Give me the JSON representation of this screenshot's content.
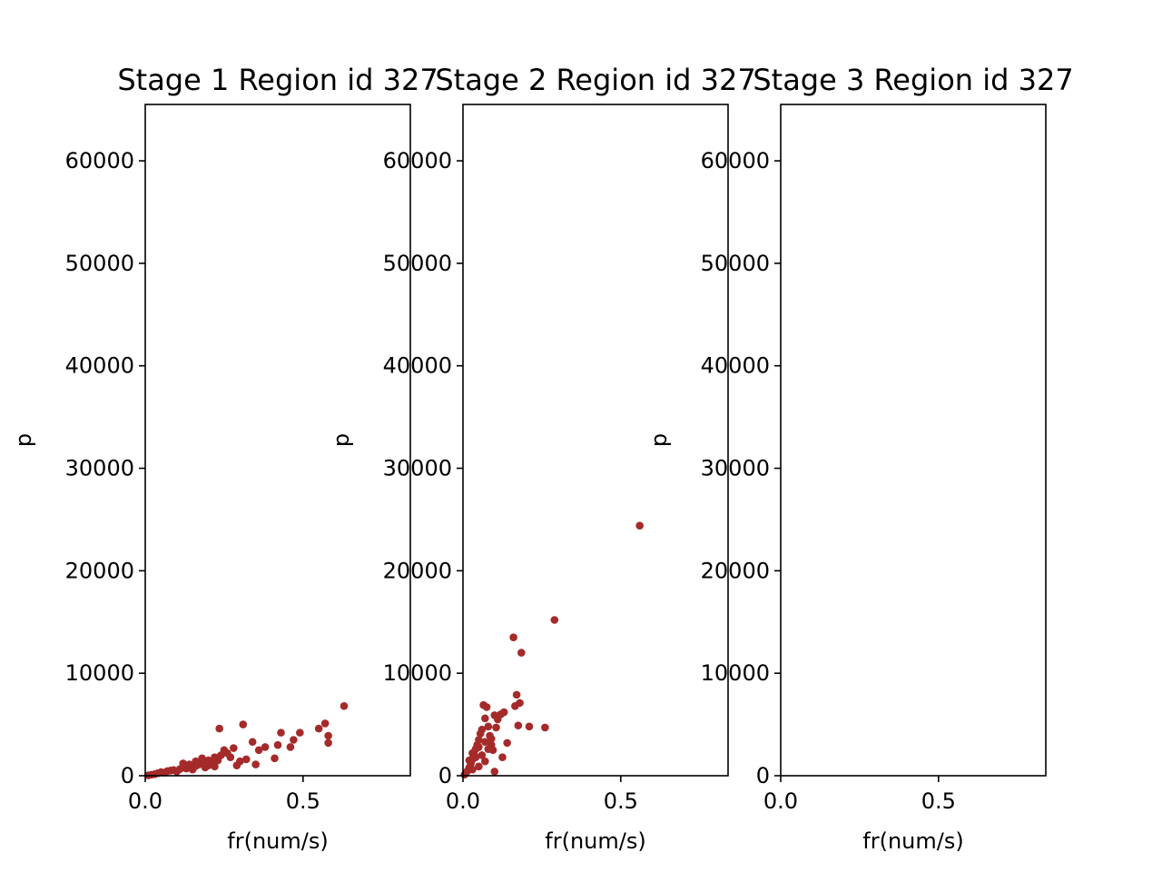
{
  "chart_data": [
    {
      "type": "scatter",
      "title": "Stage 1 Region id 327",
      "xlabel": "fr(num/s)",
      "ylabel": "p",
      "xlim": [
        0,
        0.84
      ],
      "ylim": [
        0,
        65500
      ],
      "xticks": [
        "0.0",
        "0.5"
      ],
      "yticks": [
        "0",
        "10000",
        "20000",
        "30000",
        "40000",
        "50000",
        "60000"
      ],
      "grid": false,
      "color": "#a52a2a",
      "points": [
        [
          0.01,
          40
        ],
        [
          0.02,
          100
        ],
        [
          0.03,
          150
        ],
        [
          0.04,
          250
        ],
        [
          0.05,
          350
        ],
        [
          0.06,
          300
        ],
        [
          0.07,
          450
        ],
        [
          0.08,
          500
        ],
        [
          0.09,
          550
        ],
        [
          0.1,
          400
        ],
        [
          0.11,
          650
        ],
        [
          0.12,
          800
        ],
        [
          0.13,
          700
        ],
        [
          0.14,
          900
        ],
        [
          0.15,
          600
        ],
        [
          0.16,
          950
        ],
        [
          0.17,
          1100
        ],
        [
          0.18,
          1200
        ],
        [
          0.19,
          800
        ],
        [
          0.2,
          1000
        ],
        [
          0.21,
          1300
        ],
        [
          0.22,
          900
        ],
        [
          0.23,
          1500
        ],
        [
          0.235,
          4600
        ],
        [
          0.25,
          2500
        ],
        [
          0.26,
          2200
        ],
        [
          0.27,
          1800
        ],
        [
          0.28,
          2700
        ],
        [
          0.29,
          1000
        ],
        [
          0.3,
          1400
        ],
        [
          0.31,
          5000
        ],
        [
          0.32,
          1600
        ],
        [
          0.34,
          3300
        ],
        [
          0.35,
          1100
        ],
        [
          0.36,
          2500
        ],
        [
          0.38,
          2800
        ],
        [
          0.41,
          1700
        ],
        [
          0.42,
          3000
        ],
        [
          0.43,
          4200
        ],
        [
          0.46,
          2800
        ],
        [
          0.47,
          3500
        ],
        [
          0.49,
          4200
        ],
        [
          0.55,
          4600
        ],
        [
          0.57,
          5100
        ],
        [
          0.58,
          3900
        ],
        [
          0.58,
          3200
        ],
        [
          0.63,
          6800
        ],
        [
          0.12,
          1200
        ],
        [
          0.14,
          1100
        ],
        [
          0.16,
          1400
        ],
        [
          0.18,
          1700
        ],
        [
          0.2,
          1500
        ],
        [
          0.22,
          1800
        ],
        [
          0.24,
          2000
        ]
      ]
    },
    {
      "type": "scatter",
      "title": "Stage 2 Region id 327",
      "xlabel": "fr(num/s)",
      "ylabel": "p",
      "xlim": [
        0,
        0.84
      ],
      "ylim": [
        0,
        65500
      ],
      "xticks": [
        "0.0",
        "0.5"
      ],
      "yticks": [
        "0",
        "10000",
        "20000",
        "30000",
        "40000",
        "50000",
        "60000"
      ],
      "grid": false,
      "color": "#a52a2a",
      "points": [
        [
          0.005,
          100
        ],
        [
          0.01,
          300
        ],
        [
          0.015,
          500
        ],
        [
          0.02,
          800
        ],
        [
          0.025,
          1200
        ],
        [
          0.03,
          1600
        ],
        [
          0.035,
          2100
        ],
        [
          0.04,
          2600
        ],
        [
          0.045,
          3000
        ],
        [
          0.05,
          3500
        ],
        [
          0.055,
          4100
        ],
        [
          0.06,
          4500
        ],
        [
          0.065,
          6900
        ],
        [
          0.07,
          5600
        ],
        [
          0.075,
          6700
        ],
        [
          0.08,
          4800
        ],
        [
          0.085,
          3900
        ],
        [
          0.09,
          3000
        ],
        [
          0.095,
          2500
        ],
        [
          0.1,
          5900
        ],
        [
          0.105,
          4700
        ],
        [
          0.11,
          5500
        ],
        [
          0.12,
          6000
        ],
        [
          0.125,
          1800
        ],
        [
          0.13,
          6200
        ],
        [
          0.14,
          3200
        ],
        [
          0.16,
          13500
        ],
        [
          0.165,
          6800
        ],
        [
          0.17,
          7900
        ],
        [
          0.175,
          4900
        ],
        [
          0.18,
          7100
        ],
        [
          0.185,
          12000
        ],
        [
          0.21,
          4800
        ],
        [
          0.26,
          4700
        ],
        [
          0.29,
          15200
        ],
        [
          0.56,
          24400
        ],
        [
          0.02,
          1500
        ],
        [
          0.03,
          2200
        ],
        [
          0.04,
          1800
        ],
        [
          0.05,
          2800
        ],
        [
          0.06,
          2000
        ],
        [
          0.07,
          3300
        ],
        [
          0.08,
          2600
        ],
        [
          0.09,
          3600
        ],
        [
          0.1,
          400
        ],
        [
          0.03,
          600
        ],
        [
          0.05,
          900
        ],
        [
          0.07,
          1400
        ]
      ]
    },
    {
      "type": "scatter",
      "title": "Stage 3 Region id 327",
      "xlabel": "fr(num/s)",
      "ylabel": "p",
      "xlim": [
        0,
        0.84
      ],
      "ylim": [
        0,
        65500
      ],
      "xticks": [
        "0.0",
        "0.5"
      ],
      "yticks": [
        "0",
        "10000",
        "20000",
        "30000",
        "40000",
        "50000",
        "60000"
      ],
      "grid": false,
      "color": "#a52a2a",
      "points": []
    }
  ]
}
